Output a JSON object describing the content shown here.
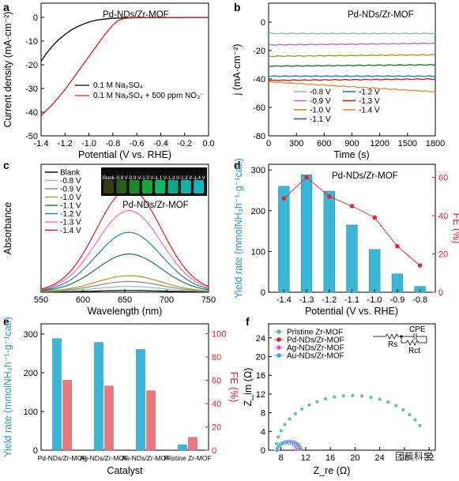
{
  "watermark": {
    "text": "团簇科学"
  },
  "chart_data": [
    {
      "panel": "a",
      "type": "line",
      "title": "Pd-NDs/Zr-MOF",
      "xlabel": "Potential (V vs. RHE)",
      "ylabel": "Current density (mA·cm⁻²)",
      "xlim": [
        -1.4,
        0.0
      ],
      "ylim": [
        -50,
        0
      ],
      "xticks": [
        -1.4,
        -1.2,
        -1.0,
        -0.8,
        -0.6,
        -0.4,
        -0.2,
        0.0
      ],
      "yticks": [
        0,
        -10,
        -20,
        -30,
        -40,
        -50
      ],
      "xtick_labels": [
        "-1.4",
        "-1.2",
        "-1.0",
        "-0.8",
        "-0.6",
        "-0.4",
        "-0.2",
        "0.0"
      ],
      "ytick_labels": [
        "0",
        "-10",
        "-20",
        "-30",
        "-40",
        "-50"
      ],
      "legend_position": "center",
      "series": [
        {
          "name": "0.1 M Na₂SO₄",
          "color": "#000000",
          "points": [
            [
              -1.4,
              -18.5
            ],
            [
              -1.35,
              -14.8
            ],
            [
              -1.3,
              -11.8
            ],
            [
              -1.25,
              -9.3
            ],
            [
              -1.2,
              -7.2
            ],
            [
              -1.15,
              -5.4
            ],
            [
              -1.1,
              -4.0
            ],
            [
              -1.05,
              -2.9
            ],
            [
              -1.0,
              -2.0
            ],
            [
              -0.95,
              -1.3
            ],
            [
              -0.9,
              -0.9
            ],
            [
              -0.85,
              -0.6
            ],
            [
              -0.8,
              -0.4
            ],
            [
              -0.7,
              -0.2
            ],
            [
              -0.5,
              -0.1
            ],
            [
              0.0,
              -0.05
            ]
          ]
        },
        {
          "name": "0.1 M Na₂SO₄ + 500 ppm NO₃⁻",
          "color": "#e31a1c",
          "points": [
            [
              -1.4,
              -41.5
            ],
            [
              -1.35,
              -39.0
            ],
            [
              -1.3,
              -36.5
            ],
            [
              -1.25,
              -33.5
            ],
            [
              -1.2,
              -30.5
            ],
            [
              -1.15,
              -27.0
            ],
            [
              -1.1,
              -23.5
            ],
            [
              -1.05,
              -20.0
            ],
            [
              -1.0,
              -16.5
            ],
            [
              -0.95,
              -13.0
            ],
            [
              -0.9,
              -9.5
            ],
            [
              -0.85,
              -6.2
            ],
            [
              -0.8,
              -3.2
            ],
            [
              -0.75,
              -1.2
            ],
            [
              -0.7,
              -0.4
            ],
            [
              -0.6,
              -0.1
            ],
            [
              0.0,
              0.0
            ]
          ]
        }
      ]
    },
    {
      "panel": "b",
      "type": "line",
      "title": "Pd-NDs/Zr-MOF",
      "xlabel": "Time (s)",
      "ylabel": "j (mA·cm⁻²)",
      "xlim": [
        0,
        1800
      ],
      "ylim": [
        -80,
        0
      ],
      "xticks": [
        0,
        300,
        600,
        900,
        1200,
        1500,
        1800
      ],
      "yticks": [
        0,
        -20,
        -40,
        -60,
        -80
      ],
      "xtick_labels": [
        "0",
        "300",
        "600",
        "900",
        "1200",
        "1500",
        "1800"
      ],
      "ytick_labels": [
        "0",
        "-20",
        "-40",
        "-60",
        "-80"
      ],
      "legend_position": "bottom-left",
      "series": [
        {
          "name": "-0.8 V",
          "color": "#7fc8a9",
          "points": [
            [
              0,
              -8
            ],
            [
              1800,
              -8
            ]
          ]
        },
        {
          "name": "-0.9 V",
          "color": "#b36ae2",
          "points": [
            [
              0,
              -16
            ],
            [
              1800,
              -15
            ]
          ]
        },
        {
          "name": "-1.0 V",
          "color": "#a89a1e",
          "points": [
            [
              0,
              -24
            ],
            [
              1800,
              -23
            ]
          ]
        },
        {
          "name": "-1.1 V",
          "color": "#1a7a34",
          "points": [
            [
              0,
              -31
            ],
            [
              1800,
              -30
            ]
          ]
        },
        {
          "name": "-1.2 V",
          "color": "#1f7fc0",
          "points": [
            [
              0,
              -38
            ],
            [
              1800,
              -38
            ]
          ]
        },
        {
          "name": "-1.3 V",
          "color": "#e31a1c",
          "points": [
            [
              0,
              -41
            ],
            [
              1800,
              -40
            ]
          ]
        },
        {
          "name": "-1.4 V",
          "color": "#f08a3c",
          "points": [
            [
              0,
              -42
            ],
            [
              1800,
              -49
            ]
          ]
        }
      ]
    },
    {
      "panel": "c",
      "type": "line",
      "title": "Pd-NDs/Zr-MOF",
      "xlabel": "Wavelength (nm)",
      "ylabel": "Absorbance",
      "xlim": [
        550,
        750
      ],
      "xticks": [
        550,
        600,
        650,
        700,
        750
      ],
      "xtick_labels": [
        "550",
        "600",
        "650",
        "700",
        "750"
      ],
      "peak_wavelength": 655,
      "legend_position": "top-left",
      "inset": {
        "labels": [
          "Blank",
          "-0.8 V",
          "-0.9 V",
          "-1.0 V",
          "-1.1 V",
          "-1.2 V",
          "-1.3 V",
          "-1.4 V"
        ]
      },
      "series": [
        {
          "name": "Blank",
          "color": "#000000",
          "peak": 0.05
        },
        {
          "name": "-0.8 V",
          "color": "#7fc8a9",
          "peak": 0.18
        },
        {
          "name": "-0.9 V",
          "color": "#8a8a8a",
          "peak": 0.35
        },
        {
          "name": "-1.0 V",
          "color": "#a89a1e",
          "peak": 0.55
        },
        {
          "name": "-1.1 V",
          "color": "#1a7a34",
          "peak": 1.3
        },
        {
          "name": "-1.2 V",
          "color": "#1f7fc0",
          "peak": 2.05
        },
        {
          "name": "-1.3 V",
          "color": "#ff66cc",
          "peak": 2.8
        },
        {
          "name": "-1.4 V",
          "color": "#e31a1c",
          "peak": 3.55
        }
      ]
    },
    {
      "panel": "d",
      "type": "bar",
      "title": "Pd-NDs/Zr-MOF",
      "xlabel": "Potential (V vs. RHE)",
      "ylabel": "Yield rate (mmolNH₃h⁻¹·g⁻¹cat.)",
      "y2label": "FE (%)",
      "categories": [
        "-1.4",
        "-1.3",
        "-1.2",
        "-1.1",
        "-1.0",
        "-0.9",
        "-0.8"
      ],
      "ylim": [
        0,
        300
      ],
      "y2lim": [
        0,
        60
      ],
      "yticks": [
        0,
        100,
        200,
        300
      ],
      "y2ticks": [
        0,
        20,
        40,
        60
      ],
      "ytick_labels": [
        "0",
        "100",
        "200",
        "300"
      ],
      "y2tick_labels": [
        "0",
        "20",
        "40",
        "60"
      ],
      "bar_color": "#3ab6d6",
      "line_color": "#e8242e",
      "series": [
        {
          "name": "Yield rate",
          "values": [
            260,
            288,
            248,
            165,
            105,
            45,
            14
          ]
        },
        {
          "name": "FE",
          "values": [
            49,
            60,
            50,
            45,
            39,
            24,
            14
          ]
        }
      ]
    },
    {
      "panel": "e",
      "type": "bar",
      "xlabel": "Catalyst",
      "ylabel": "Yield rate (mmolNH₃h⁻¹·g⁻¹cat.)",
      "y2label": "FE (%)",
      "categories": [
        "Pd-NDs/Zr-MOF",
        "Ag-NDs/Zr-MOF",
        "Au-NDs/Zr-MOF",
        "Pristine Zr-MOF"
      ],
      "ylim": [
        0,
        300
      ],
      "y2lim": [
        0,
        100
      ],
      "yticks": [
        0,
        100,
        200,
        300
      ],
      "y2ticks": [
        0,
        20,
        40,
        60,
        80,
        100
      ],
      "ytick_labels": [
        "0",
        "100",
        "200",
        "300"
      ],
      "y2tick_labels": [
        "0",
        "20",
        "40",
        "60",
        "80",
        "100"
      ],
      "series": [
        {
          "name": "Yield rate",
          "color": "#3ab6d6",
          "values": [
            288,
            278,
            260,
            14
          ]
        },
        {
          "name": "FE",
          "color": "#e8787e",
          "values": [
            60,
            55,
            51,
            11
          ]
        }
      ]
    },
    {
      "panel": "f",
      "type": "scatter",
      "xlabel": "Z_re (Ω)",
      "ylabel": "Z_im (Ω)",
      "xlim": [
        6,
        33
      ],
      "ylim": [
        0,
        27
      ],
      "xticks": [
        8,
        12,
        16,
        20,
        24,
        28,
        32
      ],
      "yticks": [
        0,
        4,
        8,
        12,
        16,
        20,
        24
      ],
      "xtick_labels": [
        "8",
        "12",
        "16",
        "20",
        "24",
        "28",
        "32"
      ],
      "ytick_labels": [
        "0",
        "4",
        "8",
        "12",
        "16",
        "20",
        "24"
      ],
      "legend_position": "top-left",
      "circuit": {
        "rs": "Rs",
        "cpe": "CPE",
        "rct": "Rct"
      },
      "series": [
        {
          "name": "Pristine Zr-MOF",
          "color": "#4fc08d",
          "center_x": 19.5,
          "radius": 12.3,
          "x_end": 31.5
        },
        {
          "name": "Pd-NDs/Zr-MOF",
          "color": "#e31a1c",
          "center_x": 9.3,
          "radius": 1.9
        },
        {
          "name": "Ag-NDs/Zr-MOF",
          "color": "#d65ad6",
          "center_x": 9.0,
          "radius": 1.6
        },
        {
          "name": "Au-NDs/Zr-MOF",
          "color": "#3aa3e0",
          "center_x": 9.2,
          "radius": 1.8
        }
      ]
    }
  ]
}
